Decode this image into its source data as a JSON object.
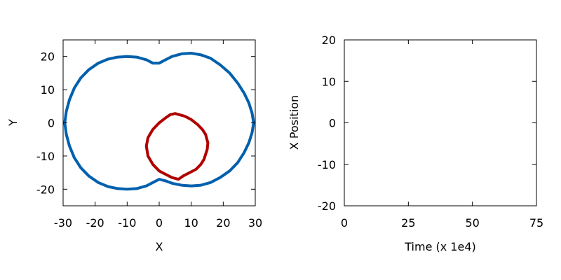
{
  "chart_data": [
    {
      "type": "scatter",
      "xlabel": "X",
      "ylabel": "Y",
      "xlim": [
        -30,
        30
      ],
      "ylim": [
        -25,
        25
      ],
      "xticks": [
        -30,
        -20,
        -10,
        0,
        10,
        20,
        30
      ],
      "yticks": [
        -20,
        -10,
        0,
        10,
        20
      ],
      "xtick_labels": [
        "-30",
        "-20",
        "-10",
        "0",
        "10",
        "20",
        "30"
      ],
      "ytick_labels": [
        "-20",
        "-10",
        "0",
        "10",
        "20"
      ],
      "grid": false,
      "series": [
        {
          "color": "#0060ad",
          "points": [
            [
              -2,
              18
            ],
            [
              -4,
              19
            ],
            [
              -7,
              19.8
            ],
            [
              -10,
              20
            ],
            [
              -13,
              19.8
            ],
            [
              -16,
              19.2
            ],
            [
              -19,
              18
            ],
            [
              -22,
              16
            ],
            [
              -24.5,
              13.5
            ],
            [
              -26.5,
              10.5
            ],
            [
              -28,
              7
            ],
            [
              -29,
              3.5
            ],
            [
              -29.5,
              0
            ],
            [
              -29,
              -3.5
            ],
            [
              -28,
              -7
            ],
            [
              -26.5,
              -10.5
            ],
            [
              -24.5,
              -13.5
            ],
            [
              -22,
              -16
            ],
            [
              -19,
              -18
            ],
            [
              -16,
              -19.2
            ],
            [
              -13,
              -19.8
            ],
            [
              -10,
              -20
            ],
            [
              -7,
              -19.8
            ],
            [
              -4,
              -19
            ],
            [
              -2,
              -18
            ],
            [
              0,
              -17
            ],
            [
              2,
              -17.5
            ],
            [
              4,
              -18.2
            ],
            [
              7,
              -18.8
            ],
            [
              10,
              -19
            ],
            [
              13,
              -18.8
            ],
            [
              16,
              -18
            ],
            [
              19,
              -16.5
            ],
            [
              22,
              -14.5
            ],
            [
              24.5,
              -12
            ],
            [
              26.5,
              -9
            ],
            [
              28,
              -6
            ],
            [
              29,
              -3
            ],
            [
              29.5,
              0
            ],
            [
              29,
              3
            ],
            [
              28,
              6
            ],
            [
              26.5,
              9
            ],
            [
              24.5,
              12
            ],
            [
              22,
              15
            ],
            [
              19,
              17.5
            ],
            [
              16,
              19.5
            ],
            [
              13,
              20.5
            ],
            [
              10,
              21
            ],
            [
              7,
              20.8
            ],
            [
              4,
              20
            ],
            [
              2,
              19
            ],
            [
              0,
              18
            ]
          ]
        },
        {
          "color": "#b00000",
          "points": [
            [
              2,
              1.5
            ],
            [
              0,
              0
            ],
            [
              -2,
              -2
            ],
            [
              -3.5,
              -4.5
            ],
            [
              -4,
              -7
            ],
            [
              -3.5,
              -10
            ],
            [
              -2,
              -12.5
            ],
            [
              0,
              -14.5
            ],
            [
              2,
              -15.5
            ],
            [
              4,
              -16.5
            ],
            [
              6,
              -17
            ],
            [
              7.5,
              -16
            ],
            [
              9.5,
              -15
            ],
            [
              11.5,
              -14
            ],
            [
              13,
              -12.5
            ],
            [
              14,
              -11
            ],
            [
              15,
              -8
            ],
            [
              15.2,
              -6
            ],
            [
              14.5,
              -3.5
            ],
            [
              13.5,
              -2
            ],
            [
              12,
              -0.5
            ],
            [
              10,
              1
            ],
            [
              8,
              2
            ],
            [
              5,
              2.8
            ],
            [
              3.5,
              2.5
            ]
          ]
        }
      ]
    },
    {
      "type": "line",
      "xlabel": "Time (x 1e4)",
      "ylabel": "X Position",
      "xlim": [
        0,
        75
      ],
      "ylim": [
        -20,
        20
      ],
      "xticks": [
        0,
        25,
        50,
        75
      ],
      "yticks": [
        -20,
        -10,
        0,
        10,
        20
      ],
      "xtick_labels": [
        "0",
        "25",
        "50",
        "75"
      ],
      "ytick_labels": [
        "-20",
        "-10",
        "0",
        "10",
        "20"
      ],
      "grid": false,
      "series": []
    }
  ]
}
